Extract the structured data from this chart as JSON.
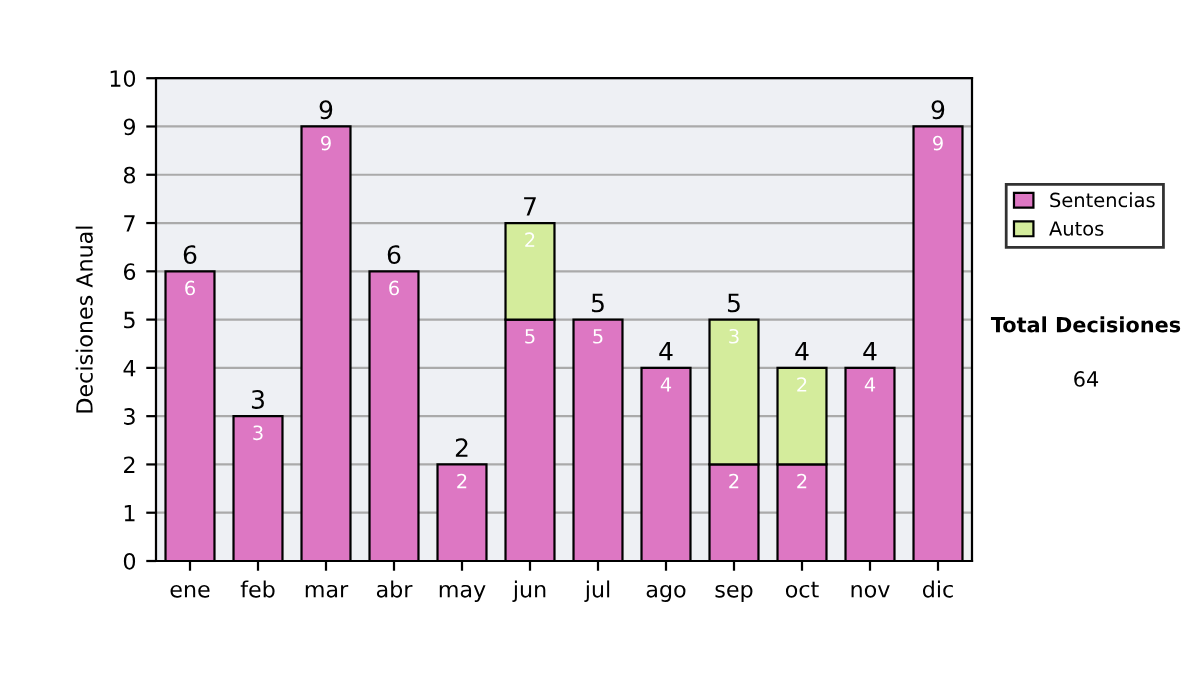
{
  "chart_data": {
    "type": "bar",
    "stacked": true,
    "ylabel": "Decisiones Anual",
    "categories": [
      "ene",
      "feb",
      "mar",
      "abr",
      "may",
      "jun",
      "jul",
      "ago",
      "sep",
      "oct",
      "nov",
      "dic"
    ],
    "series": [
      {
        "name": "Sentencias",
        "color": "#dd77c3",
        "values": [
          6,
          3,
          9,
          6,
          2,
          5,
          5,
          4,
          2,
          2,
          4,
          9
        ],
        "value_labels": [
          "6",
          "3",
          "9",
          "6",
          "2",
          "5",
          "5",
          "4",
          "2",
          "2",
          "4",
          "9"
        ]
      },
      {
        "name": "Autos",
        "color": "#d4ec9c",
        "values": [
          null,
          null,
          null,
          null,
          null,
          2,
          null,
          null,
          3,
          2,
          null,
          null
        ],
        "value_labels": [
          null,
          null,
          null,
          null,
          null,
          "2",
          null,
          null,
          "3",
          "2",
          null,
          null
        ]
      }
    ],
    "totals": [
      "6",
      "3",
      "9",
      "6",
      "2",
      "7",
      "5",
      "4",
      "5",
      "4",
      "4",
      "9"
    ],
    "ylim": [
      0,
      10
    ],
    "yticks": [
      0,
      1,
      2,
      3,
      4,
      5,
      6,
      7,
      8,
      9,
      10
    ],
    "grid": "y",
    "legend": "right",
    "annotations": [
      "Total Decisiones",
      "64"
    ]
  }
}
